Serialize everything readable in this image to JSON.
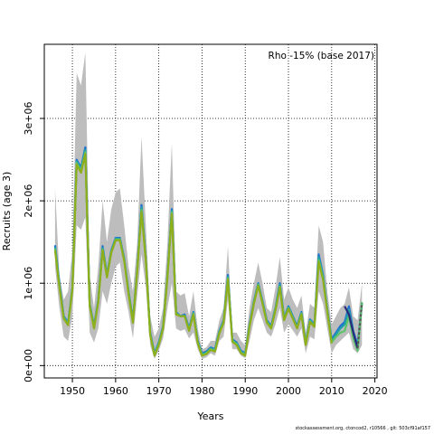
{
  "chart_data": {
    "type": "line",
    "annotation": "Rho -15% (base 2017)",
    "xlabel": "Years",
    "ylabel": "Recruits (age 3)",
    "xlim": [
      1943.5,
      2020.5
    ],
    "ylim": [
      -150000,
      3900000
    ],
    "x_ticks": [
      1950,
      1960,
      1970,
      1980,
      1990,
      2000,
      2010,
      2020
    ],
    "y_ticks": [
      0,
      1000000,
      2000000,
      3000000
    ],
    "y_tick_labels": [
      "0e+00",
      "1e+06",
      "2e+06",
      "3e+06"
    ],
    "grid": "dotted",
    "x": [
      1946,
      1947,
      1948,
      1949,
      1950,
      1951,
      1952,
      1953,
      1954,
      1955,
      1956,
      1957,
      1958,
      1959,
      1960,
      1961,
      1962,
      1963,
      1964,
      1965,
      1966,
      1967,
      1968,
      1969,
      1970,
      1971,
      1972,
      1973,
      1974,
      1975,
      1976,
      1977,
      1978,
      1979,
      1980,
      1981,
      1982,
      1983,
      1984,
      1985,
      1986,
      1987,
      1988,
      1989,
      1990,
      1991,
      1992,
      1993,
      1994,
      1995,
      1996,
      1997,
      1998,
      1999,
      2000,
      2001,
      2002,
      2003,
      2004,
      2005,
      2006,
      2007,
      2008,
      2009,
      2010,
      2011,
      2012,
      2013,
      2014,
      2015,
      2016,
      2017
    ],
    "ci_upper": [
      2150000,
      1100000,
      800000,
      900000,
      1400000,
      3550000,
      3400000,
      3800000,
      1100000,
      700000,
      1200000,
      2000000,
      1500000,
      1900000,
      2100000,
      2150000,
      1700000,
      1200000,
      900000,
      1500000,
      2780000,
      1700000,
      600000,
      350000,
      450000,
      700000,
      1500000,
      2700000,
      900000,
      850000,
      880000,
      600000,
      900000,
      450000,
      200000,
      220000,
      300000,
      300000,
      550000,
      700000,
      1450000,
      400000,
      400000,
      300000,
      250000,
      700000,
      1000000,
      1250000,
      1000000,
      700000,
      650000,
      950000,
      1320000,
      800000,
      950000,
      800000,
      700000,
      850000,
      400000,
      750000,
      700000,
      1700000,
      1500000,
      900000,
      500000,
      600000,
      700000,
      750000,
      950000,
      600000,
      550000,
      1000000
    ],
    "ci_lower": [
      1200000,
      700000,
      350000,
      300000,
      600000,
      1700000,
      1650000,
      1800000,
      400000,
      280000,
      450000,
      900000,
      750000,
      1000000,
      1200000,
      1250000,
      900000,
      650000,
      330000,
      850000,
      1350000,
      950000,
      250000,
      80000,
      180000,
      330000,
      700000,
      1000000,
      450000,
      420000,
      440000,
      330000,
      400000,
      200000,
      80000,
      100000,
      150000,
      120000,
      300000,
      350000,
      800000,
      200000,
      200000,
      120000,
      90000,
      300000,
      550000,
      700000,
      550000,
      400000,
      350000,
      500000,
      700000,
      400000,
      500000,
      430000,
      350000,
      450000,
      150000,
      350000,
      320000,
      900000,
      750000,
      450000,
      150000,
      250000,
      300000,
      350000,
      400000,
      200000,
      150000,
      250000
    ],
    "series": [
      {
        "values": [
          1460000,
          1000000,
          600000,
          520000,
          950000,
          2500000,
          2400000,
          2650000,
          750000,
          480000,
          800000,
          1450000,
          1100000,
          1400000,
          1550000,
          1550000,
          1300000,
          900000,
          550000,
          1180000,
          1950000,
          1300000,
          400000,
          150000,
          280000,
          480000,
          1100000,
          1900000,
          650000,
          600000,
          620000,
          450000,
          650000,
          300000,
          150000,
          170000,
          220000,
          200000,
          420000,
          550000,
          1100000,
          320000,
          280000,
          180000,
          150000,
          500000,
          780000,
          1000000,
          780000,
          550000,
          480000,
          700000,
          1000000,
          580000,
          720000,
          600000,
          480000,
          650000,
          280000,
          560000,
          500000,
          1350000,
          1100000,
          680000,
          320000,
          400000,
          480000,
          530000,
          720000,
          420000,
          250000,
          750000
        ],
        "color": "#1f6fd1"
      },
      {
        "values": [
          1440000,
          980000,
          590000,
          510000,
          940000,
          2480000,
          2380000,
          2620000,
          740000,
          470000,
          790000,
          1430000,
          1090000,
          1390000,
          1540000,
          1540000,
          1290000,
          890000,
          540000,
          1170000,
          1920000,
          1290000,
          390000,
          140000,
          270000,
          470000,
          1090000,
          1880000,
          640000,
          600000,
          610000,
          440000,
          640000,
          290000,
          140000,
          160000,
          210000,
          190000,
          410000,
          540000,
          1080000,
          310000,
          270000,
          170000,
          140000,
          490000,
          770000,
          990000,
          770000,
          540000,
          470000,
          690000,
          980000,
          570000,
          710000,
          590000,
          470000,
          640000,
          270000,
          550000,
          490000,
          1320000,
          1080000,
          670000,
          300000,
          380000,
          450000,
          500000,
          680000,
          400000,
          200000,
          760000
        ],
        "color": "#21a0a8"
      },
      {
        "values": [
          1420000,
          960000,
          580000,
          500000,
          930000,
          2460000,
          2360000,
          2590000,
          730000,
          460000,
          780000,
          1410000,
          1080000,
          1380000,
          1530000,
          1530000,
          1280000,
          880000,
          530000,
          1160000,
          1890000,
          1280000,
          380000,
          130000,
          260000,
          460000,
          1080000,
          1860000,
          630000,
          600000,
          600000,
          430000,
          630000,
          280000,
          130000,
          150000,
          200000,
          180000,
          400000,
          530000,
          1060000,
          300000,
          260000,
          160000,
          130000,
          480000,
          760000,
          980000,
          760000,
          530000,
          460000,
          680000,
          960000,
          560000,
          700000,
          580000,
          460000,
          630000,
          260000,
          540000,
          480000,
          1280000,
          1060000,
          660000,
          280000,
          350000,
          400000,
          420000,
          600000,
          330000,
          180000,
          770000
        ],
        "color": "#5cc46b"
      },
      {
        "values": [
          null,
          null,
          null,
          null,
          null,
          null,
          null,
          null,
          null,
          null,
          null,
          null,
          null,
          null,
          null,
          null,
          null,
          null,
          null,
          null,
          null,
          null,
          null,
          null,
          null,
          null,
          null,
          null,
          null,
          null,
          null,
          null,
          null,
          null,
          null,
          null,
          null,
          null,
          null,
          null,
          null,
          null,
          null,
          null,
          null,
          null,
          null,
          null,
          null,
          null,
          null,
          null,
          null,
          null,
          null,
          null,
          null,
          null,
          null,
          null,
          null,
          null,
          null,
          null,
          null,
          null,
          null,
          null,
          null,
          null,
          null,
          null
        ],
        "color": "#2a2a7a",
        "last_segment": [
          [
            2013,
            720000
          ],
          [
            2014,
            620000
          ],
          [
            2015,
            400000
          ],
          [
            2016,
            210000
          ]
        ]
      },
      {
        "values": [
          1400000,
          950000,
          570000,
          490000,
          920000,
          2440000,
          2340000,
          2570000,
          720000,
          450000,
          770000,
          1400000,
          1070000,
          1370000,
          1520000,
          1520000,
          1270000,
          870000,
          520000,
          1150000,
          1870000,
          1270000,
          370000,
          120000,
          250000,
          450000,
          1070000,
          1840000,
          620000,
          600000,
          600000,
          420000,
          620000,
          270000,
          120000,
          140000,
          190000,
          170000,
          390000,
          520000,
          1050000,
          290000,
          250000,
          150000,
          120000,
          470000,
          750000,
          970000,
          750000,
          520000,
          450000,
          670000,
          950000,
          550000,
          690000,
          570000,
          450000,
          620000,
          250000,
          530000,
          470000,
          1260000,
          1040000,
          650000,
          270000,
          null,
          null,
          null,
          null,
          null,
          null,
          null
        ],
        "color": "#8fae1b"
      }
    ],
    "trailing_segment": {
      "x": [
        2016,
        2017
      ],
      "y": [
        210000,
        760000
      ],
      "color": "#555555",
      "dash": "3,2"
    }
  },
  "footer": "stockassessment.org, ctoncod2, r10566 , git: 503cf91af157"
}
